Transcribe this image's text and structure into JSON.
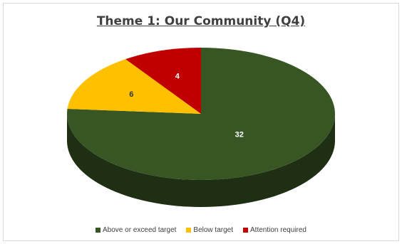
{
  "chart_data": {
    "type": "pie",
    "title": "Theme 1: Our Community (Q4)",
    "categories": [
      "Above or exceed target",
      "Below target",
      "Attention required"
    ],
    "values": [
      32,
      6,
      4
    ],
    "data_labels": [
      "32",
      "6",
      "4"
    ],
    "colors": [
      "#375623",
      "#ffc000",
      "#c00000"
    ],
    "style": "3d",
    "legend_position": "bottom"
  }
}
